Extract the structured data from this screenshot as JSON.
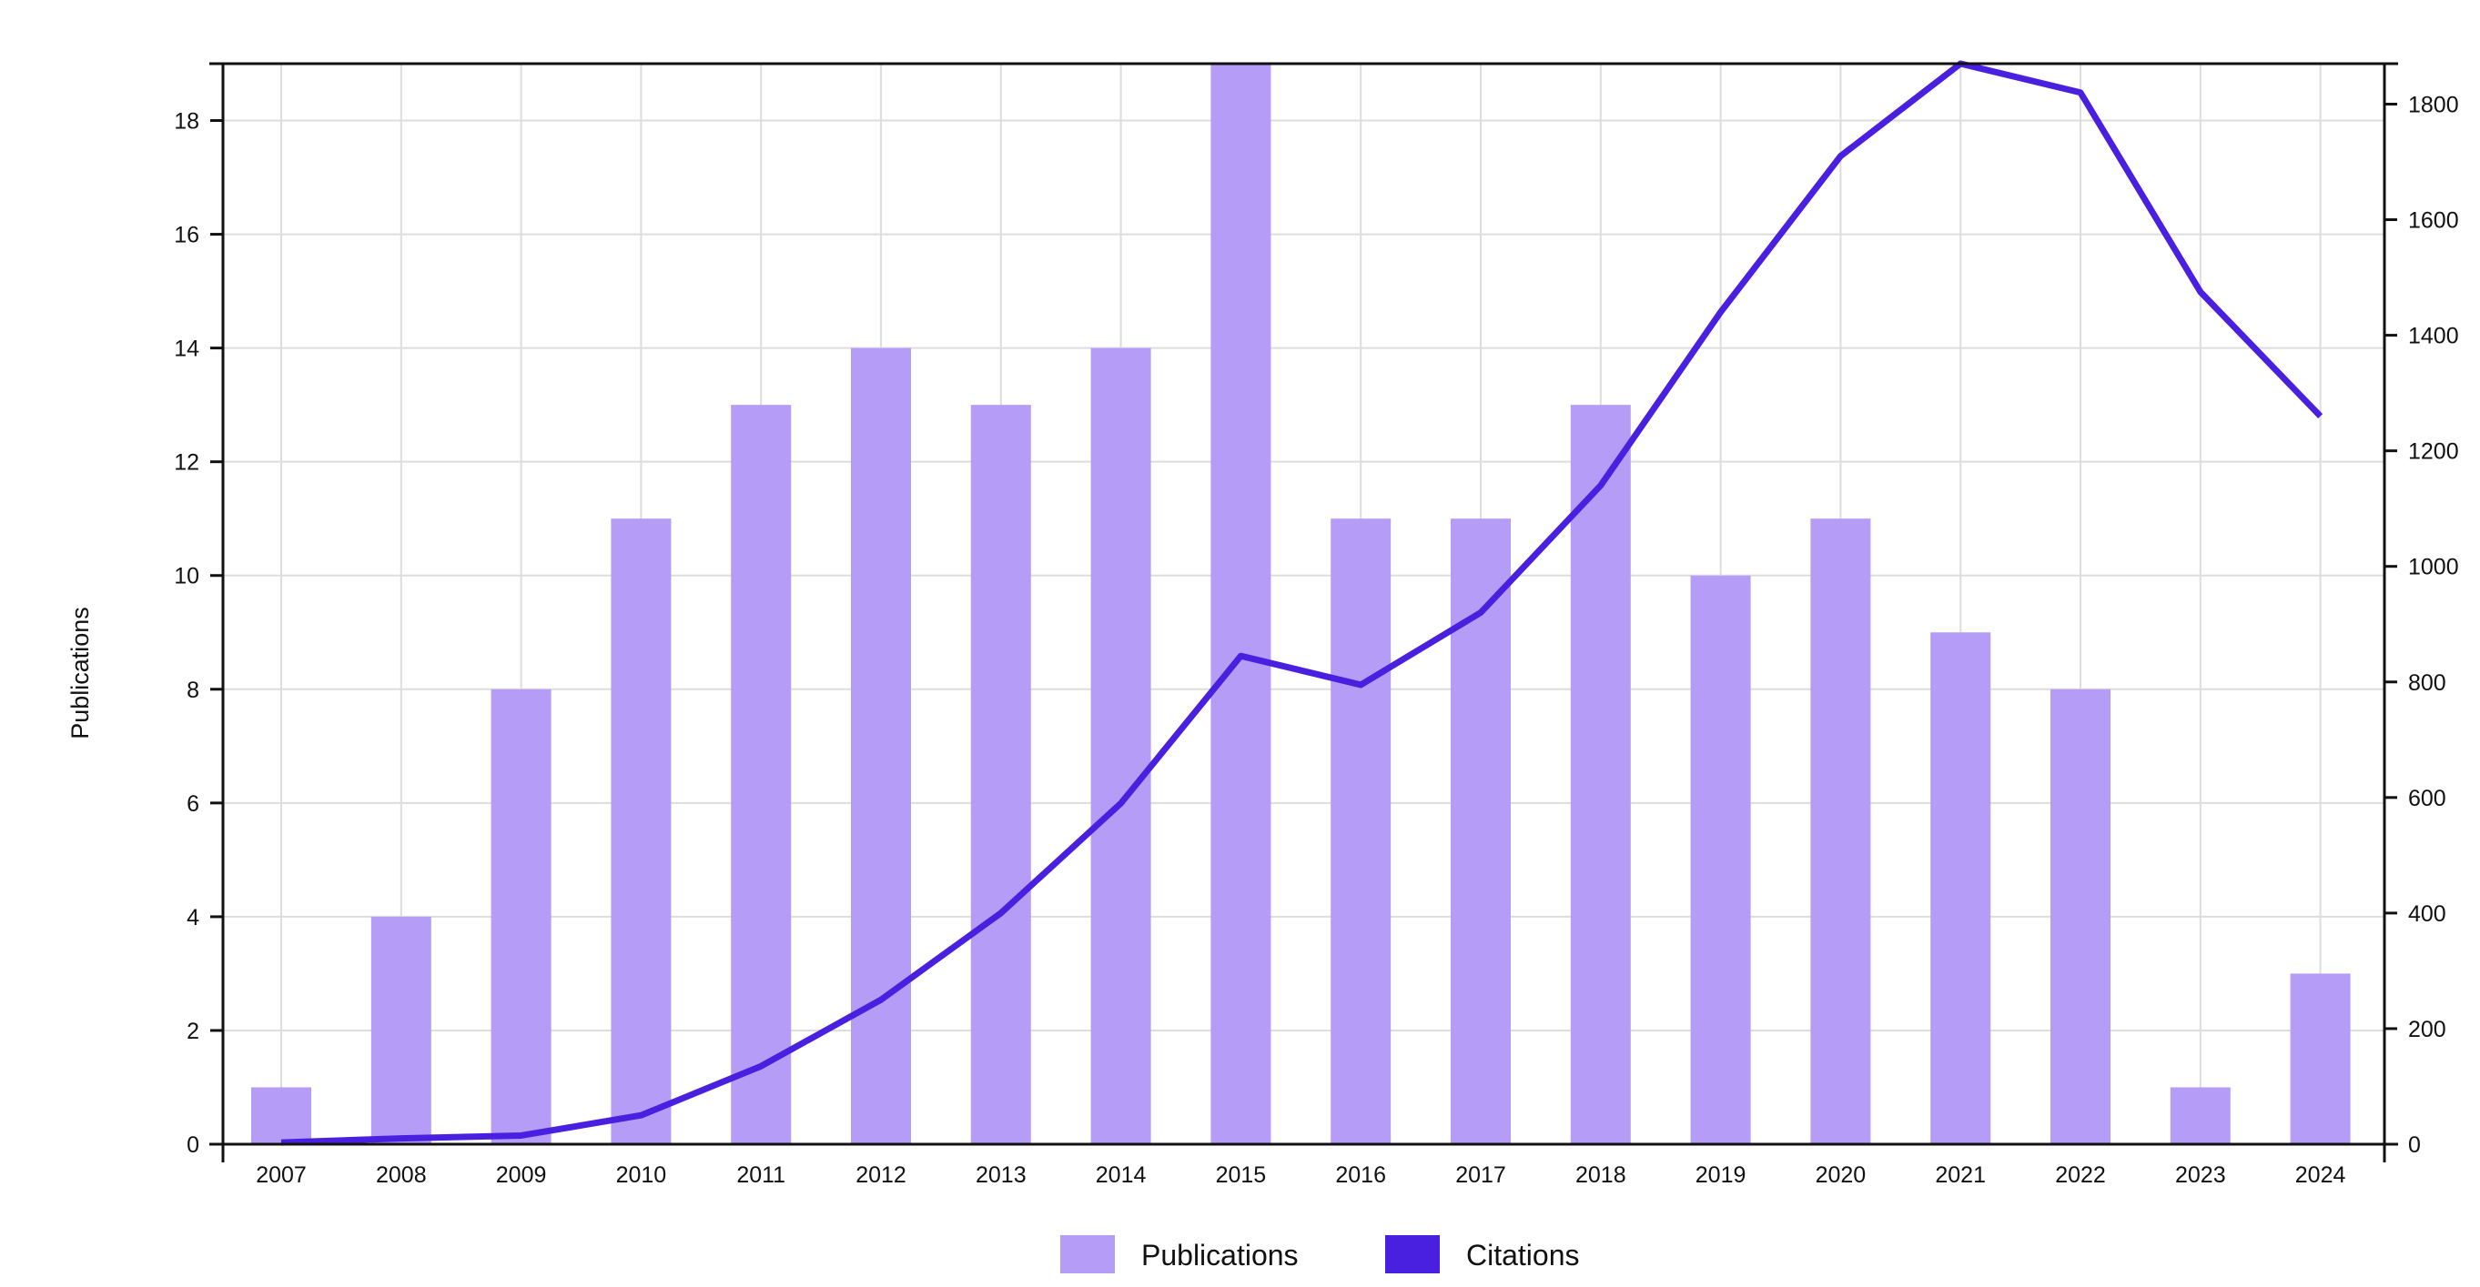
{
  "chart_data": {
    "type": "bar",
    "categories": [
      "2007",
      "2008",
      "2009",
      "2010",
      "2011",
      "2012",
      "2013",
      "2014",
      "2015",
      "2016",
      "2017",
      "2018",
      "2019",
      "2020",
      "2021",
      "2022",
      "2023",
      "2024"
    ],
    "series": [
      {
        "name": "Publications",
        "type": "bar",
        "axis": "left",
        "color": "#b59cf7",
        "values": [
          1,
          4,
          8,
          11,
          13,
          14,
          13,
          14,
          19,
          11,
          11,
          13,
          10,
          11,
          9,
          8,
          1,
          3
        ]
      },
      {
        "name": "Citations",
        "type": "line",
        "axis": "right",
        "color": "#4a20e0",
        "values": [
          3,
          10,
          15,
          50,
          135,
          250,
          400,
          590,
          845,
          795,
          920,
          1140,
          1440,
          1710,
          1870,
          1820,
          1475,
          1260
        ]
      }
    ],
    "ylabel": "Publications",
    "y_left": {
      "lim": [
        0,
        19
      ],
      "ticks": [
        "0",
        "2",
        "4",
        "6",
        "8",
        "10",
        "12",
        "14",
        "16",
        "18"
      ]
    },
    "y_right": {
      "lim": [
        0,
        1870
      ],
      "ticks": [
        "0",
        "200",
        "400",
        "600",
        "800",
        "1000",
        "1200",
        "1400",
        "1600",
        "1800"
      ]
    },
    "grid": true,
    "legend": {
      "position": "bottom-center",
      "entries": [
        "Publications",
        "Citations"
      ]
    }
  }
}
